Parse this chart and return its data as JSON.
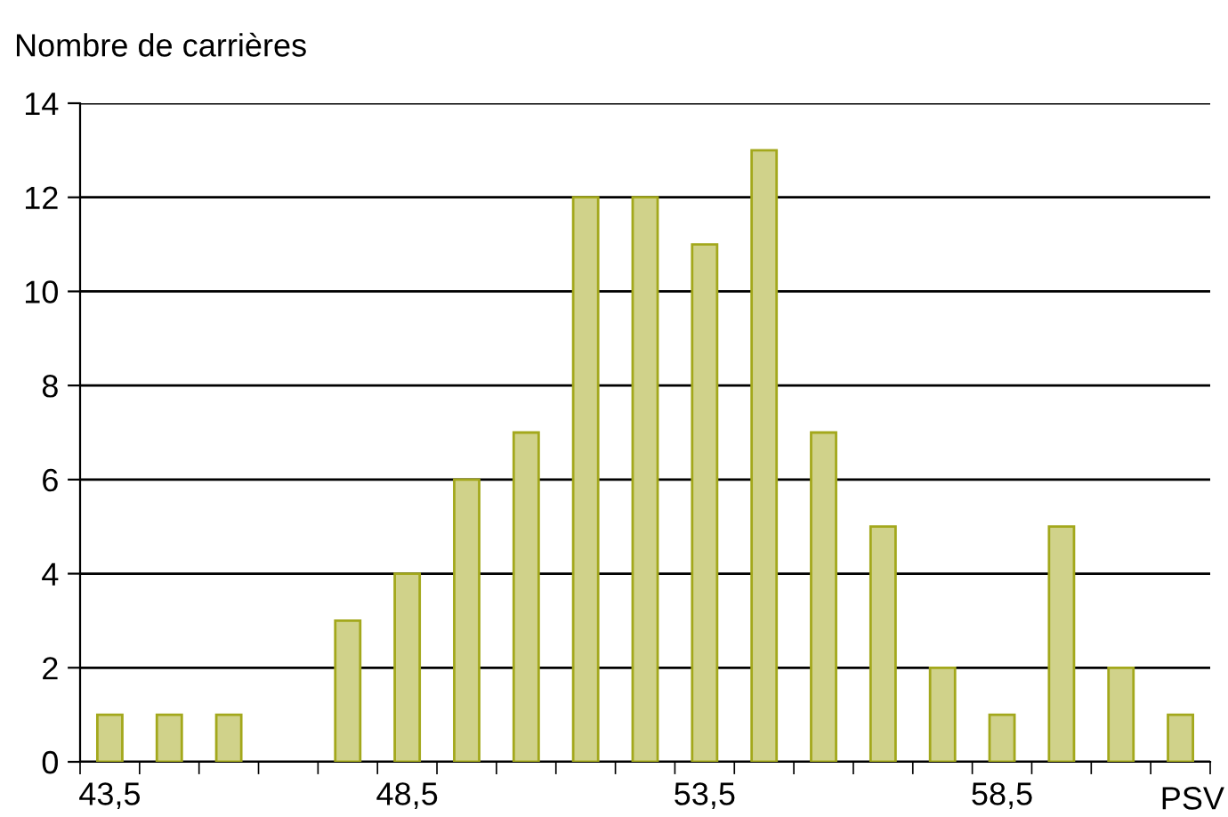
{
  "chart_data": {
    "type": "bar",
    "ylabel": "Nombre de carrières",
    "xlabel": "PSV",
    "categories": [
      "43,5",
      null,
      null,
      null,
      null,
      "48,5",
      null,
      null,
      null,
      null,
      "53,5",
      null,
      null,
      null,
      null,
      "58,5",
      null,
      null,
      null
    ],
    "values": [
      1,
      1,
      1,
      null,
      3,
      4,
      6,
      7,
      12,
      12,
      11,
      13,
      7,
      5,
      2,
      1,
      5,
      2,
      1
    ],
    "color": "#d0d28a",
    "ylim": [
      0,
      14
    ],
    "yticks": [
      0,
      2,
      4,
      6,
      8,
      10,
      12,
      14
    ],
    "grid": "y"
  }
}
